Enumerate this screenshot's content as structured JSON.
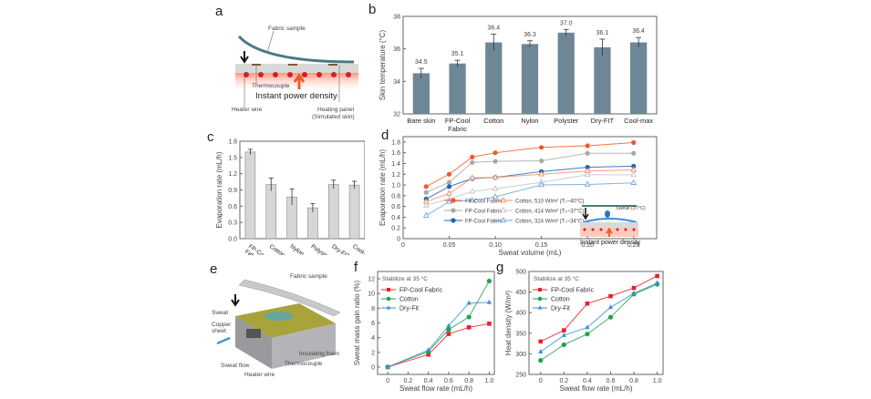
{
  "panels": {
    "a": {
      "label": "a",
      "annotations": {
        "fabric_sample": "Fabric sample",
        "thermocouple": "Thermocouple",
        "instant_power": "Instant power density",
        "heater_wire": "Heater wire",
        "heating_panel_1": "Heating panel",
        "heating_panel_2": "(Simulated skin)"
      }
    },
    "e": {
      "label": "e",
      "annotations": {
        "fabric_sample": "Fabric sample",
        "sweat": "Sweat",
        "copper_1": "Copper",
        "copper_2": "sheet",
        "sweat_flow": "Sweat flow",
        "insulating_foam": "Insulating foam",
        "thermocouple": "Thermocouple",
        "heater_wire": "Heater wire"
      }
    },
    "d_inset": {
      "sweat": "Sweat (37°C)",
      "instant_power": "Instant power density"
    }
  },
  "chart_data": [
    {
      "id": "b",
      "panel_label": "b",
      "type": "bar",
      "title": "",
      "xlabel": "",
      "ylabel": "Skin temperature (°C)",
      "ylim": [
        32,
        38
      ],
      "yticks": [
        32,
        34,
        36,
        38
      ],
      "categories": [
        "Bare skin",
        "FP-Cool Fabric",
        "Cotton",
        "Nylon",
        "Polyster",
        "Dry-FIT",
        "Cool-max"
      ],
      "category_lines": [
        [
          "Bare skin"
        ],
        [
          "FP-Cool",
          "Fabric"
        ],
        [
          "Cotton"
        ],
        [
          "Nylon"
        ],
        [
          "Polyster"
        ],
        [
          "Dry-FIT"
        ],
        [
          "Cool-max"
        ]
      ],
      "values": [
        34.5,
        35.1,
        36.4,
        36.3,
        37.0,
        36.1,
        36.4
      ],
      "errors": [
        0.3,
        0.2,
        0.5,
        0.2,
        0.2,
        0.5,
        0.3
      ],
      "data_labels": [
        "34.5",
        "35.1",
        "36.4",
        "36.3",
        "37.0",
        "36.1",
        "36.4"
      ],
      "bar_color": "#6e8796",
      "grid": false
    },
    {
      "id": "c",
      "panel_label": "c",
      "type": "bar",
      "title": "",
      "xlabel": "",
      "ylabel": "Evaporation rate (mL/h)",
      "ylim": [
        0.0,
        1.8
      ],
      "yticks": [
        0.0,
        0.3,
        0.6,
        0.9,
        1.2,
        1.5,
        1.8
      ],
      "categories": [
        "FP-Cool Fabric",
        "Cotton",
        "Nylon",
        "Polyster",
        "Dry-FIT",
        "Cool-max"
      ],
      "category_lines": [
        [
          "FP-Cool",
          "Fabric"
        ],
        [
          "Cotton"
        ],
        [
          "Nylon"
        ],
        [
          "Polyster"
        ],
        [
          "Dry-FIT"
        ],
        [
          "Cool-max"
        ]
      ],
      "values": [
        1.6,
        1.0,
        0.77,
        0.57,
        1.0,
        0.99
      ],
      "errors": [
        0.05,
        0.12,
        0.15,
        0.08,
        0.08,
        0.07
      ],
      "bar_color": "#d6d6d6",
      "grid": false
    },
    {
      "id": "d",
      "panel_label": "d",
      "type": "line",
      "title": "",
      "xlabel": "Sweat volume (mL)",
      "ylabel": "Evaporation rate (mL/h)",
      "xlim": [
        0,
        0.275
      ],
      "ylim": [
        0,
        1.9
      ],
      "xticks": [
        0,
        0.05,
        0.1,
        0.15,
        0.2,
        0.25
      ],
      "xtick_labels": [
        "0",
        "0.05",
        "0.10",
        "0.15",
        "0.20",
        "0.25"
      ],
      "yticks": [
        0,
        0.2,
        0.4,
        0.6,
        0.8,
        1.0,
        1.2,
        1.4,
        1.6,
        1.8
      ],
      "ytick_labels": [
        "0",
        "0.2",
        "0.4",
        "0.6",
        "0.8",
        "1.0",
        "1.2",
        "1.4",
        "1.6",
        "1.8"
      ],
      "x": [
        0.025,
        0.05,
        0.075,
        0.1,
        0.15,
        0.2,
        0.25
      ],
      "series": [
        {
          "name": "FP-Cool Fabric",
          "condition": "510 W/m² (Ts~40°C)",
          "color": "#f05a28",
          "marker": "circle-filled",
          "values": [
            0.97,
            1.2,
            1.52,
            1.6,
            1.7,
            1.73,
            1.79
          ]
        },
        {
          "name": "FP-Cool Fabric",
          "condition": "414 W/m² (Ts~37°C)",
          "color": "#a8a8a8",
          "marker": "circle-filled",
          "values": [
            0.86,
            1.05,
            1.42,
            1.44,
            1.45,
            1.59,
            1.59
          ]
        },
        {
          "name": "FP-Cool Fabric",
          "condition": "324 W/m² (Ts~34°C)",
          "color": "#1f64b4",
          "marker": "circle-filled",
          "values": [
            0.74,
            0.97,
            1.12,
            1.14,
            1.25,
            1.33,
            1.35
          ]
        },
        {
          "name": "Cotton",
          "condition": "510 W/m² (Ts~40°C)",
          "color": "#f58b66",
          "marker": "triangle-open",
          "values": [
            0.69,
            0.84,
            1.13,
            1.14,
            1.2,
            1.26,
            1.28
          ]
        },
        {
          "name": "Cotton",
          "condition": "414 W/m² (Ts~37°C)",
          "color": "#c4c4c4",
          "marker": "triangle-open",
          "values": [
            0.62,
            0.74,
            0.88,
            0.93,
            1.05,
            1.19,
            1.19
          ]
        },
        {
          "name": "Cotton",
          "condition": "324 W/m² (Ts~34°C)",
          "color": "#6ea6dc",
          "marker": "triangle-open",
          "values": [
            0.43,
            0.69,
            0.71,
            0.78,
            1.0,
            1.01,
            1.04
          ]
        }
      ],
      "legend": [
        "FP-Cool Fabric",
        "Cotton,  510 W/m² (Tₛ~40°C)",
        "FP-Cool Fabric",
        "Cotton,  414 W/m² (Tₛ~37°C)",
        "FP-Cool Fabric",
        "Cotton,  324 W/m² (Tₛ~34°C)"
      ],
      "legend_position": "bottom-left",
      "grid": false
    },
    {
      "id": "f",
      "panel_label": "f",
      "type": "line",
      "title": "",
      "annotation": "Stabilize at 35 °C",
      "xlabel": "Sweat flow rate (mL/h)",
      "ylabel": "Sweat  mass gain ratio (%)",
      "xlim": [
        -0.1,
        1.05
      ],
      "ylim": [
        -1,
        13
      ],
      "xticks": [
        0,
        0.2,
        0.4,
        0.6,
        0.8,
        1.0
      ],
      "xtick_labels": [
        "0",
        "0.2",
        "0.4",
        "0.6",
        "0.8",
        "1.0"
      ],
      "yticks": [
        0,
        2,
        4,
        6,
        8,
        10,
        12
      ],
      "ytick_labels": [
        "0",
        "2",
        "4",
        "6",
        "8",
        "10",
        "12"
      ],
      "x": [
        0,
        0.4,
        0.6,
        0.8,
        1.0
      ],
      "series": [
        {
          "name": "FP-Cool Fabric",
          "color": "#e8212e",
          "marker": "square",
          "values": [
            0,
            1.7,
            4.5,
            5.4,
            5.9
          ]
        },
        {
          "name": "Cotton",
          "color": "#22a24a",
          "marker": "circle",
          "values": [
            0,
            2.1,
            5.1,
            6.8,
            11.7
          ]
        },
        {
          "name": "Dry-Fit",
          "color": "#3a8fd8",
          "marker": "triangle",
          "values": [
            0,
            2.3,
            5.6,
            8.7,
            8.8
          ]
        }
      ],
      "legend_position": "top-left",
      "grid": false
    },
    {
      "id": "g",
      "panel_label": "g",
      "type": "line",
      "title": "",
      "annotation": "Stabilize at 35 °C",
      "xlabel": "Sweat flow rate (mL/h)",
      "ylabel": "Heat density (W/m²)",
      "xlim": [
        -0.1,
        1.05
      ],
      "ylim": [
        250,
        500
      ],
      "xticks": [
        0,
        0.2,
        0.4,
        0.6,
        0.8,
        1.0
      ],
      "xtick_labels": [
        "0",
        "0.2",
        "0.4",
        "0.6",
        "0.8",
        "1.0"
      ],
      "yticks": [
        250,
        300,
        350,
        400,
        450,
        500
      ],
      "ytick_labels": [
        "250",
        "300",
        "350",
        "400",
        "450",
        "500"
      ],
      "x": [
        0,
        0.2,
        0.4,
        0.6,
        0.8,
        1.0
      ],
      "series": [
        {
          "name": "FP-Cool Fabric",
          "color": "#e8212e",
          "marker": "square",
          "values": [
            330,
            357,
            422,
            440,
            460,
            489
          ]
        },
        {
          "name": "Cotton",
          "color": "#22a24a",
          "marker": "circle",
          "values": [
            284,
            322,
            348,
            389,
            445,
            469
          ]
        },
        {
          "name": "Dry-Fit",
          "color": "#3a8fd8",
          "marker": "triangle",
          "values": [
            305,
            345,
            364,
            413,
            447,
            472
          ]
        }
      ],
      "legend_position": "top-left",
      "grid": false
    }
  ]
}
